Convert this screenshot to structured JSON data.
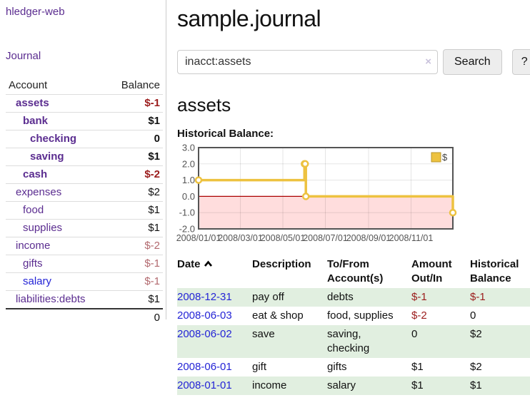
{
  "colors": {
    "purple": "#5b2d90",
    "blue-link": "#2424d6",
    "negative": "#9b1c1c",
    "negative-light": "#b2696e",
    "row-green": "#e1efe0",
    "chart-gold": "#edc240",
    "chart-pink": "#ffdddd",
    "zero-line": "#aa0000"
  },
  "sidebar": {
    "brand": "hledger-web",
    "nav": {
      "journal": "Journal"
    },
    "accounts": {
      "headers": {
        "account": "Account",
        "balance": "Balance"
      },
      "rows": [
        {
          "account": "assets",
          "balance": "$-1"
        },
        {
          "account": "bank",
          "balance": "$1"
        },
        {
          "account": "checking",
          "balance": "0"
        },
        {
          "account": "saving",
          "balance": "$1"
        },
        {
          "account": "cash",
          "balance": "$-2"
        },
        {
          "account": "expenses",
          "balance": "$2"
        },
        {
          "account": "food",
          "balance": "$1"
        },
        {
          "account": "supplies",
          "balance": "$1"
        },
        {
          "account": "income",
          "balance": "$-2"
        },
        {
          "account": "gifts",
          "balance": "$-1"
        },
        {
          "account": "salary",
          "balance": "$-1"
        },
        {
          "account": "liabilities:debts",
          "balance": "$1"
        }
      ],
      "total": "0"
    }
  },
  "main": {
    "title": "sample.journal",
    "search": {
      "value": "inacct:assets",
      "clear_icon": "×",
      "button_label": "Search",
      "help_label": "?"
    },
    "account_heading": "assets",
    "chart_label": "Historical Balance:"
  },
  "chart_data": {
    "type": "line",
    "step": true,
    "title": "Historical Balance",
    "series": [
      {
        "name": "$",
        "color": "#edc240",
        "points": [
          [
            "2008-01-01",
            1
          ],
          [
            "2008-06-01",
            2
          ],
          [
            "2008-06-02",
            2
          ],
          [
            "2008-06-03",
            0
          ],
          [
            "2008-12-31",
            -1
          ]
        ]
      }
    ],
    "x_range": [
      "2008-01-01",
      "2008-12-31"
    ],
    "ylim": [
      -2,
      3
    ],
    "ytick_labels": [
      "3.0",
      "2.0",
      "1.0",
      "0.0",
      "-1.0",
      "-2.0"
    ],
    "xtick_labels": [
      "2008/01/01",
      "2008/03/01",
      "2008/05/01",
      "2008/07/01",
      "2008/09/01",
      "2008/11/01"
    ],
    "legend": {
      "label": "$",
      "position": "top-right"
    },
    "grid": true,
    "negative_region": true
  },
  "register": {
    "headers": {
      "date": "Date",
      "description": "Description",
      "accounts": "To/From Account(s)",
      "amount": "Amount Out/In",
      "balance": "Historical Balance"
    },
    "rows": [
      {
        "date": "2008-12-31",
        "description": "pay off",
        "accounts": "debts",
        "amount": "$-1",
        "balance": "$-1"
      },
      {
        "date": "2008-06-03",
        "description": "eat & shop",
        "accounts": "food, supplies",
        "amount": "$-2",
        "balance": "0"
      },
      {
        "date": "2008-06-02",
        "description": "save",
        "accounts": "saving, checking",
        "amount": "0",
        "balance": "$2"
      },
      {
        "date": "2008-06-01",
        "description": "gift",
        "accounts": "gifts",
        "amount": "$1",
        "balance": "$2"
      },
      {
        "date": "2008-01-01",
        "description": "income",
        "accounts": "salary",
        "amount": "$1",
        "balance": "$1"
      }
    ]
  }
}
